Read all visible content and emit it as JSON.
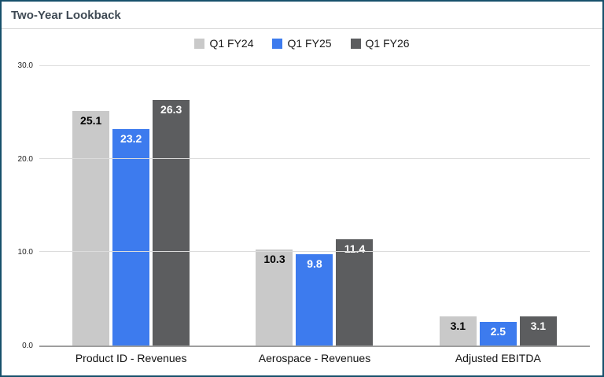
{
  "page": {
    "border_color": "#17506b",
    "title_color": "#3f4a54"
  },
  "chart_data": {
    "type": "bar",
    "title": "Two-Year Lookback",
    "categories": [
      "Product ID - Revenues",
      "Aerospace - Revenues",
      "Adjusted EBITDA"
    ],
    "series": [
      {
        "name": "Q1 FY24",
        "color": "#c9c9c9",
        "label_color": "#000000",
        "values": [
          25.1,
          10.3,
          3.1
        ]
      },
      {
        "name": "Q1 FY25",
        "color": "#3d7bee",
        "label_color": "#ffffff",
        "values": [
          23.2,
          9.8,
          2.5
        ]
      },
      {
        "name": "Q1 FY26",
        "color": "#5c5d5f",
        "label_color": "#ffffff",
        "values": [
          26.3,
          11.4,
          3.1
        ]
      }
    ],
    "ylim": [
      0,
      30
    ],
    "yticks": [
      0,
      10,
      20,
      30
    ],
    "ytick_labels": [
      "0.0",
      "10.0",
      "20.0",
      "30.0"
    ],
    "value_decimals": 1,
    "grid": true,
    "legend_position": "top"
  }
}
